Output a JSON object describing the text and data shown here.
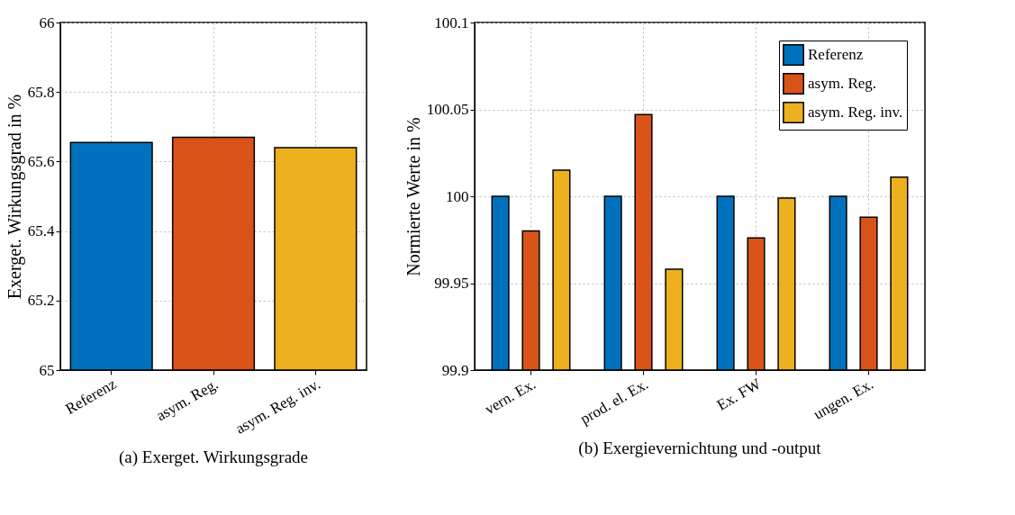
{
  "chart_data": [
    {
      "type": "bar",
      "title": "(a) Exerget. Wirkungsgrade",
      "ylabel": "Exerget. Wirkungsgrad in %",
      "categories": [
        "Referenz",
        "asym. Reg.",
        "asym. Reg. inv."
      ],
      "values": [
        65.655,
        65.67,
        65.64
      ],
      "colors": [
        "#0072bd",
        "#d95319",
        "#edb120"
      ],
      "ylim": [
        65,
        66
      ],
      "yticks": [
        65,
        65.2,
        65.4,
        65.6,
        65.8,
        66
      ],
      "grid": true
    },
    {
      "type": "bar",
      "title": "(b) Exergievernichtung und -output",
      "ylabel": "Normierte Werte in %",
      "categories": [
        "vern. Ex.",
        "prod. el. Ex.",
        "Ex. FW",
        "ungen. Ex."
      ],
      "series": [
        {
          "name": "Referenz",
          "color": "#0072bd",
          "values": [
            100,
            100,
            100,
            100
          ]
        },
        {
          "name": "asym. Reg.",
          "color": "#d95319",
          "values": [
            99.98,
            100.047,
            99.976,
            99.988
          ]
        },
        {
          "name": "asym. Reg. inv.",
          "color": "#edb120",
          "values": [
            100.015,
            99.958,
            99.999,
            100.011
          ]
        }
      ],
      "ylim": [
        99.9,
        100.1
      ],
      "yticks": [
        99.9,
        99.95,
        100,
        100.05,
        100.1
      ],
      "grid": true,
      "legend": "top right"
    }
  ]
}
